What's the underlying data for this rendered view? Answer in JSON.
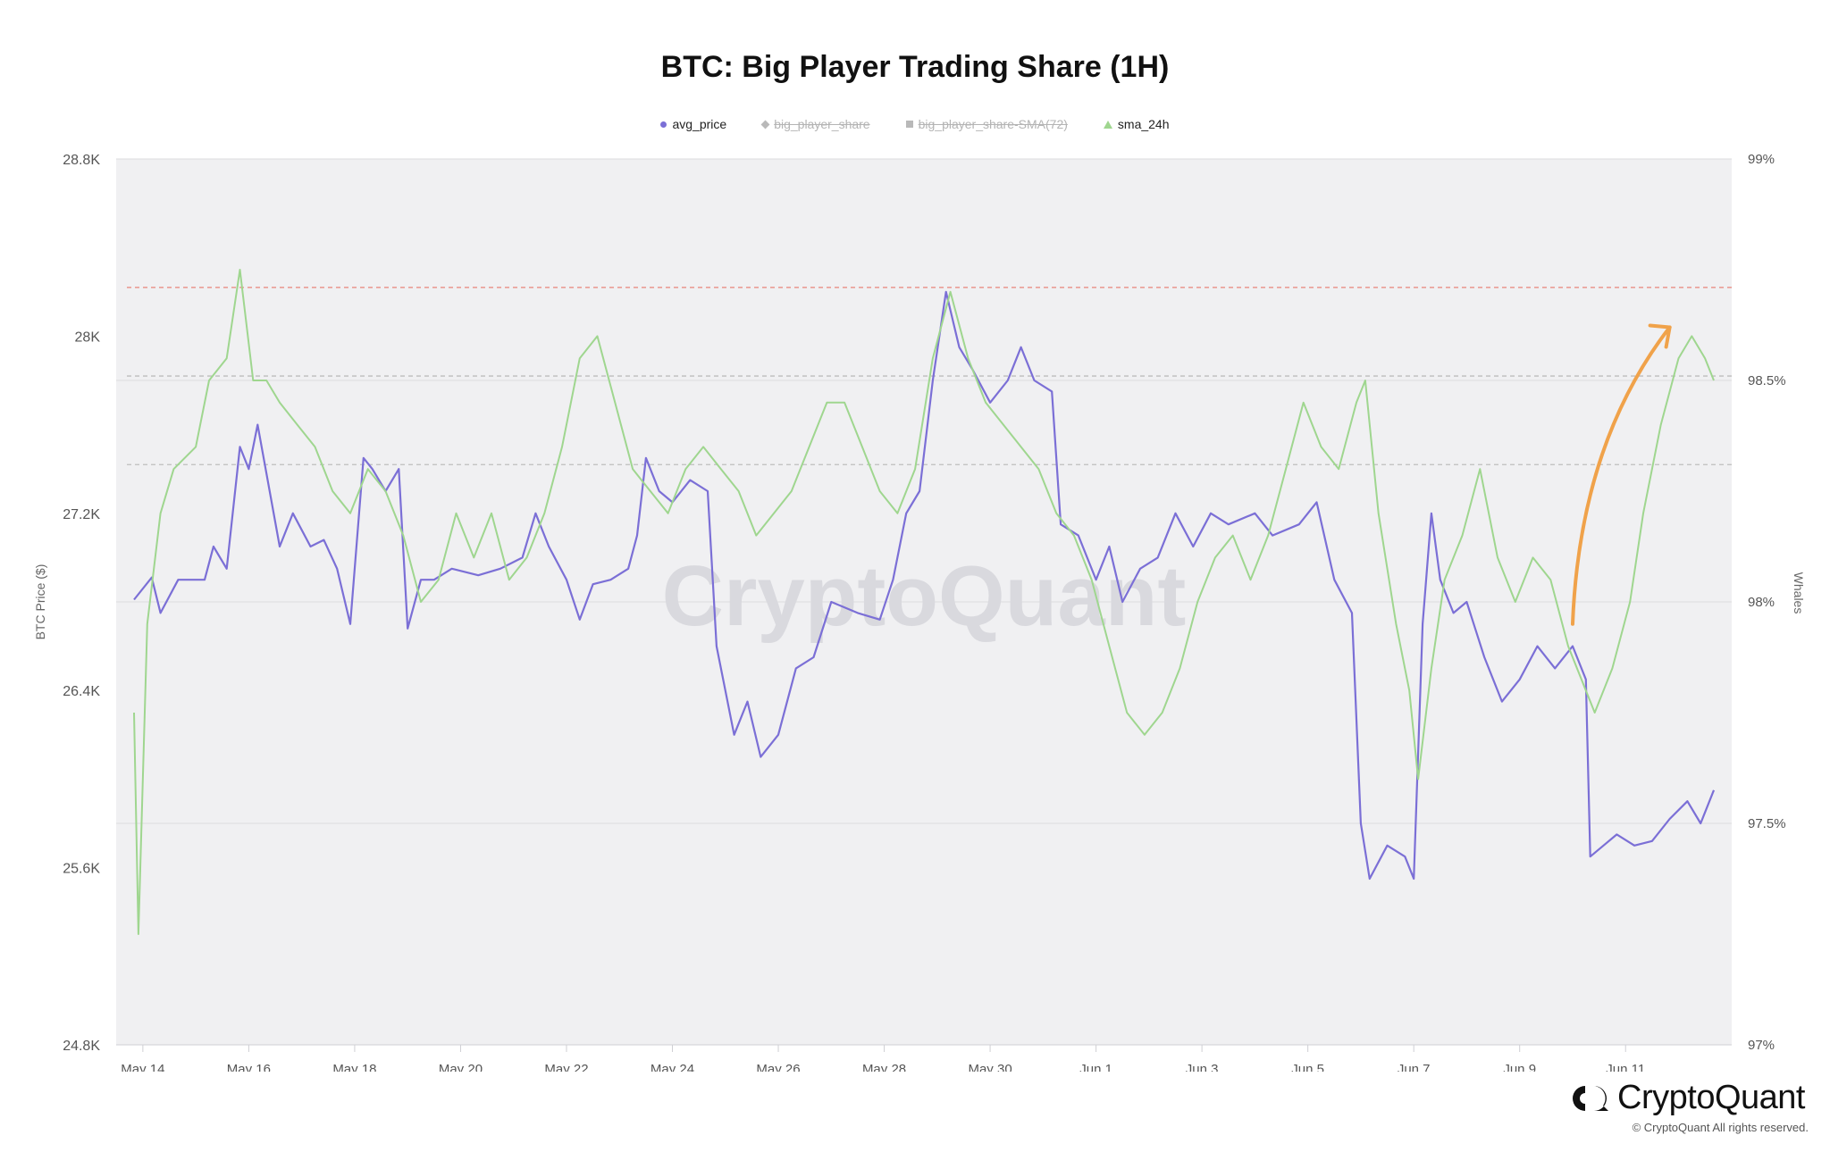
{
  "title": "BTC: Big Player Trading Share (1H)",
  "legend": [
    {
      "label": "avg_price",
      "marker": "circle",
      "hidden": false,
      "color": "#7b6fd6"
    },
    {
      "label": "big_player_share",
      "marker": "diamond",
      "hidden": true,
      "color": "#b9b9b9"
    },
    {
      "label": "big_player_share-SMA(72)",
      "marker": "square",
      "hidden": true,
      "color": "#b9b9b9"
    },
    {
      "label": "sma_24h",
      "marker": "triangle",
      "hidden": false,
      "color": "#9fd68f"
    }
  ],
  "watermark": "CryptoQuant",
  "brand": {
    "name": "CryptoQuant",
    "copyright": "© CryptoQuant All rights reserved."
  },
  "chart_data": {
    "type": "line",
    "title": "BTC: Big Player Trading Share (1H)",
    "ylabel_left": "BTC Price ($)",
    "ylabel_right": "Whales",
    "ylim_left": [
      24800,
      28800
    ],
    "ylim_right": [
      97,
      99
    ],
    "yticks_left": [
      "28.8K",
      "28K",
      "27.2K",
      "26.4K",
      "25.6K",
      "24.8K"
    ],
    "ytick_values_left": [
      28800,
      28000,
      27200,
      26400,
      25600,
      24800
    ],
    "yticks_right": [
      "99%",
      "98.5%",
      "98%",
      "97.5%",
      "97%"
    ],
    "ytick_values_right": [
      99,
      98.5,
      98,
      97.5,
      97
    ],
    "x_range": [
      "2023-05-13 20:00",
      "2023-06-12 16:00"
    ],
    "xticks": [
      "May 14",
      "May 16",
      "May 18",
      "May 20",
      "May 22",
      "May 24",
      "May 26",
      "May 28",
      "May 30",
      "Jun 1",
      "Jun 3",
      "Jun 5",
      "Jun 7",
      "Jun 9",
      "Jun 11"
    ],
    "xtick_dates": [
      "2023-05-14",
      "2023-05-16",
      "2023-05-18",
      "2023-05-20",
      "2023-05-22",
      "2023-05-24",
      "2023-05-26",
      "2023-05-28",
      "2023-05-30",
      "2023-06-01",
      "2023-06-03",
      "2023-06-05",
      "2023-06-07",
      "2023-06-09",
      "2023-06-11"
    ],
    "reference_lines_right": [
      {
        "value": 98.71,
        "color": "#e8847a",
        "style": "dashed"
      },
      {
        "value": 98.51,
        "color": "#bdbdbd",
        "style": "dashed"
      },
      {
        "value": 98.31,
        "color": "#bdbdbd",
        "style": "dashed"
      }
    ],
    "annotation_arrow": {
      "color": "#f0a24a",
      "from": [
        "2023-06-10 00:00",
        97.95
      ],
      "to": [
        "2023-06-11 20:00",
        98.62
      ]
    },
    "grid": true,
    "legend_position": "top-center",
    "series": [
      {
        "name": "avg_price",
        "axis": "left",
        "color": "#7b6fd6",
        "points": [
          [
            "2023-05-13 20:00",
            26810
          ],
          [
            "2023-05-14 04:00",
            26910
          ],
          [
            "2023-05-14 08:00",
            26750
          ],
          [
            "2023-05-14 16:00",
            26900
          ],
          [
            "2023-05-15 04:00",
            26900
          ],
          [
            "2023-05-15 08:00",
            27050
          ],
          [
            "2023-05-15 14:00",
            26950
          ],
          [
            "2023-05-15 20:00",
            27500
          ],
          [
            "2023-05-16 00:00",
            27400
          ],
          [
            "2023-05-16 04:00",
            27600
          ],
          [
            "2023-05-16 08:00",
            27380
          ],
          [
            "2023-05-16 14:00",
            27050
          ],
          [
            "2023-05-16 20:00",
            27200
          ],
          [
            "2023-05-17 04:00",
            27050
          ],
          [
            "2023-05-17 10:00",
            27080
          ],
          [
            "2023-05-17 16:00",
            26950
          ],
          [
            "2023-05-17 22:00",
            26700
          ],
          [
            "2023-05-18 04:00",
            27450
          ],
          [
            "2023-05-18 08:00",
            27400
          ],
          [
            "2023-05-18 14:00",
            27300
          ],
          [
            "2023-05-18 20:00",
            27400
          ],
          [
            "2023-05-19 00:00",
            26680
          ],
          [
            "2023-05-19 06:00",
            26900
          ],
          [
            "2023-05-19 12:00",
            26900
          ],
          [
            "2023-05-19 20:00",
            26950
          ],
          [
            "2023-05-20 08:00",
            26920
          ],
          [
            "2023-05-20 18:00",
            26950
          ],
          [
            "2023-05-21 04:00",
            27000
          ],
          [
            "2023-05-21 10:00",
            27200
          ],
          [
            "2023-05-21 16:00",
            27050
          ],
          [
            "2023-05-22 00:00",
            26900
          ],
          [
            "2023-05-22 06:00",
            26720
          ],
          [
            "2023-05-22 12:00",
            26880
          ],
          [
            "2023-05-22 20:00",
            26900
          ],
          [
            "2023-05-23 04:00",
            26950
          ],
          [
            "2023-05-23 08:00",
            27100
          ],
          [
            "2023-05-23 12:00",
            27450
          ],
          [
            "2023-05-23 18:00",
            27300
          ],
          [
            "2023-05-24 00:00",
            27250
          ],
          [
            "2023-05-24 08:00",
            27350
          ],
          [
            "2023-05-24 16:00",
            27300
          ],
          [
            "2023-05-24 20:00",
            26600
          ],
          [
            "2023-05-25 04:00",
            26200
          ],
          [
            "2023-05-25 10:00",
            26350
          ],
          [
            "2023-05-25 16:00",
            26100
          ],
          [
            "2023-05-26 00:00",
            26200
          ],
          [
            "2023-05-26 08:00",
            26500
          ],
          [
            "2023-05-26 16:00",
            26550
          ],
          [
            "2023-05-27 00:00",
            26800
          ],
          [
            "2023-05-27 12:00",
            26750
          ],
          [
            "2023-05-27 22:00",
            26720
          ],
          [
            "2023-05-28 04:00",
            26900
          ],
          [
            "2023-05-28 10:00",
            27200
          ],
          [
            "2023-05-28 16:00",
            27300
          ],
          [
            "2023-05-28 22:00",
            27800
          ],
          [
            "2023-05-29 04:00",
            28200
          ],
          [
            "2023-05-29 10:00",
            27950
          ],
          [
            "2023-05-29 16:00",
            27850
          ],
          [
            "2023-05-30 00:00",
            27700
          ],
          [
            "2023-05-30 08:00",
            27800
          ],
          [
            "2023-05-30 14:00",
            27950
          ],
          [
            "2023-05-30 20:00",
            27800
          ],
          [
            "2023-05-31 04:00",
            27750
          ],
          [
            "2023-05-31 08:00",
            27150
          ],
          [
            "2023-05-31 16:00",
            27100
          ],
          [
            "2023-06-01 00:00",
            26900
          ],
          [
            "2023-06-01 06:00",
            27050
          ],
          [
            "2023-06-01 12:00",
            26800
          ],
          [
            "2023-06-01 20:00",
            26950
          ],
          [
            "2023-06-02 04:00",
            27000
          ],
          [
            "2023-06-02 12:00",
            27200
          ],
          [
            "2023-06-02 20:00",
            27050
          ],
          [
            "2023-06-03 04:00",
            27200
          ],
          [
            "2023-06-03 12:00",
            27150
          ],
          [
            "2023-06-04 00:00",
            27200
          ],
          [
            "2023-06-04 08:00",
            27100
          ],
          [
            "2023-06-04 20:00",
            27150
          ],
          [
            "2023-06-05 04:00",
            27250
          ],
          [
            "2023-06-05 12:00",
            26900
          ],
          [
            "2023-06-05 20:00",
            26750
          ],
          [
            "2023-06-06 00:00",
            25800
          ],
          [
            "2023-06-06 04:00",
            25550
          ],
          [
            "2023-06-06 12:00",
            25700
          ],
          [
            "2023-06-06 20:00",
            25650
          ],
          [
            "2023-06-07 00:00",
            25550
          ],
          [
            "2023-06-07 04:00",
            26700
          ],
          [
            "2023-06-07 08:00",
            27200
          ],
          [
            "2023-06-07 12:00",
            26900
          ],
          [
            "2023-06-07 18:00",
            26750
          ],
          [
            "2023-06-08 00:00",
            26800
          ],
          [
            "2023-06-08 08:00",
            26550
          ],
          [
            "2023-06-08 16:00",
            26350
          ],
          [
            "2023-06-09 00:00",
            26450
          ],
          [
            "2023-06-09 08:00",
            26600
          ],
          [
            "2023-06-09 16:00",
            26500
          ],
          [
            "2023-06-10 00:00",
            26600
          ],
          [
            "2023-06-10 06:00",
            26450
          ],
          [
            "2023-06-10 08:00",
            25650
          ],
          [
            "2023-06-10 14:00",
            25700
          ],
          [
            "2023-06-10 20:00",
            25750
          ],
          [
            "2023-06-11 04:00",
            25700
          ],
          [
            "2023-06-11 12:00",
            25720
          ],
          [
            "2023-06-11 20:00",
            25820
          ],
          [
            "2023-06-12 04:00",
            25900
          ],
          [
            "2023-06-12 10:00",
            25800
          ],
          [
            "2023-06-12 16:00",
            25950
          ]
        ]
      },
      {
        "name": "sma_24h",
        "axis": "right",
        "color": "#9fd68f",
        "points": [
          [
            "2023-05-13 20:00",
            97.75
          ],
          [
            "2023-05-13 22:00",
            97.25
          ],
          [
            "2023-05-14 02:00",
            97.95
          ],
          [
            "2023-05-14 08:00",
            98.2
          ],
          [
            "2023-05-14 14:00",
            98.3
          ],
          [
            "2023-05-15 00:00",
            98.35
          ],
          [
            "2023-05-15 06:00",
            98.5
          ],
          [
            "2023-05-15 14:00",
            98.55
          ],
          [
            "2023-05-15 20:00",
            98.75
          ],
          [
            "2023-05-16 02:00",
            98.5
          ],
          [
            "2023-05-16 08:00",
            98.5
          ],
          [
            "2023-05-16 14:00",
            98.45
          ],
          [
            "2023-05-16 22:00",
            98.4
          ],
          [
            "2023-05-17 06:00",
            98.35
          ],
          [
            "2023-05-17 14:00",
            98.25
          ],
          [
            "2023-05-17 22:00",
            98.2
          ],
          [
            "2023-05-18 06:00",
            98.3
          ],
          [
            "2023-05-18 14:00",
            98.25
          ],
          [
            "2023-05-18 22:00",
            98.15
          ],
          [
            "2023-05-19 06:00",
            98.0
          ],
          [
            "2023-05-19 14:00",
            98.05
          ],
          [
            "2023-05-19 22:00",
            98.2
          ],
          [
            "2023-05-20 06:00",
            98.1
          ],
          [
            "2023-05-20 14:00",
            98.2
          ],
          [
            "2023-05-20 22:00",
            98.05
          ],
          [
            "2023-05-21 06:00",
            98.1
          ],
          [
            "2023-05-21 14:00",
            98.2
          ],
          [
            "2023-05-21 22:00",
            98.35
          ],
          [
            "2023-05-22 06:00",
            98.55
          ],
          [
            "2023-05-22 14:00",
            98.6
          ],
          [
            "2023-05-22 22:00",
            98.45
          ],
          [
            "2023-05-23 06:00",
            98.3
          ],
          [
            "2023-05-23 14:00",
            98.25
          ],
          [
            "2023-05-23 22:00",
            98.2
          ],
          [
            "2023-05-24 06:00",
            98.3
          ],
          [
            "2023-05-24 14:00",
            98.35
          ],
          [
            "2023-05-24 22:00",
            98.3
          ],
          [
            "2023-05-25 06:00",
            98.25
          ],
          [
            "2023-05-25 14:00",
            98.15
          ],
          [
            "2023-05-25 22:00",
            98.2
          ],
          [
            "2023-05-26 06:00",
            98.25
          ],
          [
            "2023-05-26 14:00",
            98.35
          ],
          [
            "2023-05-26 22:00",
            98.45
          ],
          [
            "2023-05-27 06:00",
            98.45
          ],
          [
            "2023-05-27 14:00",
            98.35
          ],
          [
            "2023-05-27 22:00",
            98.25
          ],
          [
            "2023-05-28 06:00",
            98.2
          ],
          [
            "2023-05-28 14:00",
            98.3
          ],
          [
            "2023-05-28 22:00",
            98.55
          ],
          [
            "2023-05-29 06:00",
            98.7
          ],
          [
            "2023-05-29 14:00",
            98.55
          ],
          [
            "2023-05-29 22:00",
            98.45
          ],
          [
            "2023-05-30 06:00",
            98.4
          ],
          [
            "2023-05-30 14:00",
            98.35
          ],
          [
            "2023-05-30 22:00",
            98.3
          ],
          [
            "2023-05-31 06:00",
            98.2
          ],
          [
            "2023-05-31 14:00",
            98.15
          ],
          [
            "2023-05-31 22:00",
            98.05
          ],
          [
            "2023-06-01 06:00",
            97.9
          ],
          [
            "2023-06-01 14:00",
            97.75
          ],
          [
            "2023-06-01 22:00",
            97.7
          ],
          [
            "2023-06-02 06:00",
            97.75
          ],
          [
            "2023-06-02 14:00",
            97.85
          ],
          [
            "2023-06-02 22:00",
            98.0
          ],
          [
            "2023-06-03 06:00",
            98.1
          ],
          [
            "2023-06-03 14:00",
            98.15
          ],
          [
            "2023-06-03 22:00",
            98.05
          ],
          [
            "2023-06-04 06:00",
            98.15
          ],
          [
            "2023-06-04 14:00",
            98.3
          ],
          [
            "2023-06-04 22:00",
            98.45
          ],
          [
            "2023-06-05 06:00",
            98.35
          ],
          [
            "2023-06-05 14:00",
            98.3
          ],
          [
            "2023-06-05 22:00",
            98.45
          ],
          [
            "2023-06-06 02:00",
            98.5
          ],
          [
            "2023-06-06 08:00",
            98.2
          ],
          [
            "2023-06-06 16:00",
            97.95
          ],
          [
            "2023-06-06 22:00",
            97.8
          ],
          [
            "2023-06-07 02:00",
            97.6
          ],
          [
            "2023-06-07 08:00",
            97.85
          ],
          [
            "2023-06-07 14:00",
            98.05
          ],
          [
            "2023-06-07 22:00",
            98.15
          ],
          [
            "2023-06-08 06:00",
            98.3
          ],
          [
            "2023-06-08 14:00",
            98.1
          ],
          [
            "2023-06-08 22:00",
            98.0
          ],
          [
            "2023-06-09 06:00",
            98.1
          ],
          [
            "2023-06-09 14:00",
            98.05
          ],
          [
            "2023-06-09 22:00",
            97.9
          ],
          [
            "2023-06-10 06:00",
            97.8
          ],
          [
            "2023-06-10 10:00",
            97.75
          ],
          [
            "2023-06-10 18:00",
            97.85
          ],
          [
            "2023-06-11 02:00",
            98.0
          ],
          [
            "2023-06-11 08:00",
            98.2
          ],
          [
            "2023-06-11 16:00",
            98.4
          ],
          [
            "2023-06-12 00:00",
            98.55
          ],
          [
            "2023-06-12 06:00",
            98.6
          ],
          [
            "2023-06-12 12:00",
            98.55
          ],
          [
            "2023-06-12 16:00",
            98.5
          ]
        ]
      }
    ]
  }
}
